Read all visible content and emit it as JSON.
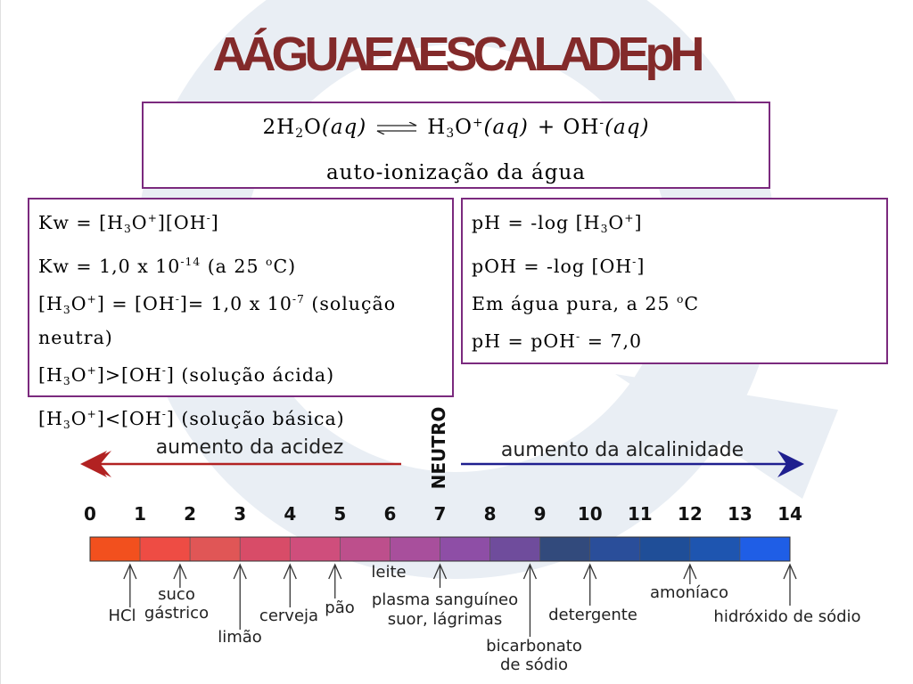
{
  "title": "A ÁGUA E A ESCALA DE pH",
  "equation": {
    "reaction": [
      "2H",
      "2",
      "O",
      "(aq)",
      "H",
      "3",
      "O",
      "+",
      "(aq)",
      "+ OH",
      "-",
      "(aq)"
    ],
    "caption": "auto-ionização da água"
  },
  "left_box": {
    "lines": [
      [
        "Kw = [H",
        "3",
        "O",
        "+",
        "][OH",
        "-",
        "]"
      ],
      [
        "Kw = 1,0 x 10",
        "-14",
        " (a 25 ",
        "o",
        "C)"
      ],
      [
        "[H",
        "3",
        "O",
        "+",
        "] = [OH",
        "-",
        "]= 1,0 x 10",
        "-7",
        " (solução neutra)"
      ],
      [
        "[H",
        "3",
        "O",
        "+",
        "]>[OH",
        "-",
        "] (solução ácida)"
      ],
      [
        "[H",
        "3",
        "O",
        "+",
        "]<[OH",
        "-",
        "] (solução básica)"
      ]
    ]
  },
  "right_box": {
    "lines": [
      [
        "pH = -log [H",
        "3",
        "O",
        "+",
        "]"
      ],
      [
        "pOH = -log [OH",
        "-",
        "]"
      ],
      [
        "Em água pura, a 25 ",
        "o",
        "C"
      ],
      [
        "pH = pOH",
        "-",
        " = 7,0"
      ]
    ]
  },
  "scale": {
    "acid_label": "aumento da acidez",
    "base_label": "aumento da alcalinidade",
    "neutral_label": "NEUTRO",
    "ticks": [
      0,
      1,
      2,
      3,
      4,
      5,
      6,
      7,
      8,
      9,
      10,
      11,
      12,
      13,
      14
    ],
    "colors": [
      "#f2501e",
      "#ee4c44",
      "#e05656",
      "#d84c68",
      "#cf4e7c",
      "#bd4f8c",
      "#a84f9c",
      "#8e4ea6",
      "#6f4c9c",
      "#324a7c",
      "#2a4e9a",
      "#1f4e98",
      "#1e55b0",
      "#1f5ee6"
    ],
    "acid_color": "#b22222",
    "base_color": "#1f1f8f",
    "substances": [
      {
        "label": [
          "HCl"
        ],
        "value": 0.8
      },
      {
        "label": [
          "suco",
          "gástrico"
        ],
        "value": 1.8
      },
      {
        "label": [
          "limão"
        ],
        "value": 3
      },
      {
        "label": [
          "cerveja"
        ],
        "value": 4
      },
      {
        "label": [
          "pão"
        ],
        "value": 4.9
      },
      {
        "label": [
          "leite"
        ]
      },
      {
        "label": [
          "plasma sanguíneo",
          "suor, lágrimas"
        ],
        "value": 7
      },
      {
        "label": [
          "bicarbonato",
          "de sódio"
        ],
        "value": 8.8
      },
      {
        "label": [
          "detergente"
        ],
        "value": 10
      },
      {
        "label": [
          "amoníaco"
        ],
        "value": 12
      },
      {
        "label": [
          "hidróxido de sódio"
        ],
        "value": 14
      }
    ]
  }
}
